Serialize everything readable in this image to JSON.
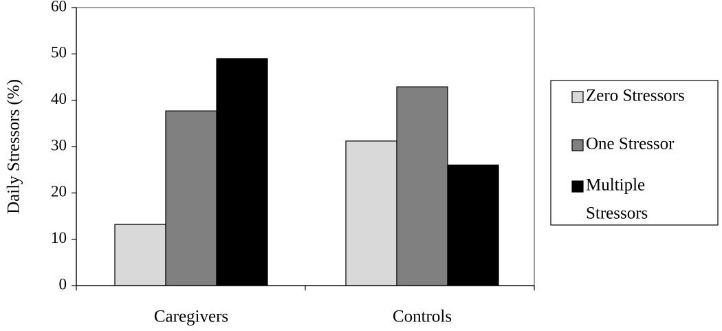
{
  "chart_data": {
    "type": "bar",
    "title": "",
    "xlabel": "",
    "ylabel": "Daily Stressors (%)",
    "categories": [
      "Caregivers",
      "Controls"
    ],
    "ylim": [
      0,
      60
    ],
    "yticks": [
      "0",
      "10",
      "20",
      "30",
      "40",
      "50",
      "60"
    ],
    "grid": false,
    "legend_position": "right",
    "series": [
      {
        "name": "Zero Stressors",
        "legend_lines": [
          "Zero Stressors"
        ],
        "values": [
          13.2,
          31.2
        ],
        "color": "#d9d9d9"
      },
      {
        "name": "One Stressor",
        "legend_lines": [
          "One Stressor"
        ],
        "values": [
          37.7,
          42.9
        ],
        "color": "#808080"
      },
      {
        "name": "Multiple Stressors",
        "legend_lines": [
          "Multiple",
          "Stressors"
        ],
        "values": [
          49.0,
          26.0
        ],
        "color": "#000000"
      }
    ]
  }
}
